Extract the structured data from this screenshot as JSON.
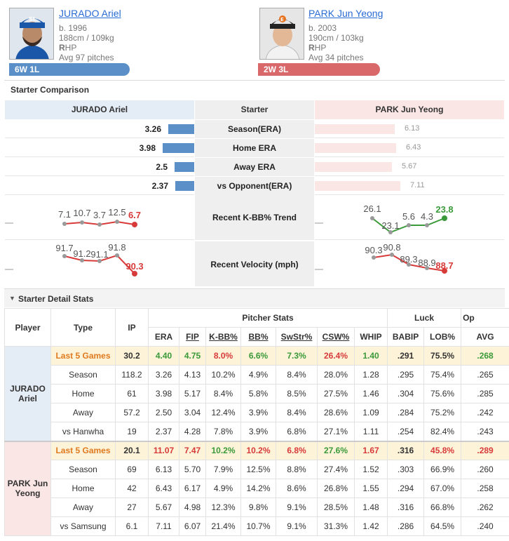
{
  "header": {
    "left": {
      "name": "JURADO Ariel",
      "born": "b. 1996",
      "size": "188cm / 109kg",
      "hand_bold": "R",
      "hand_rest": "HP",
      "avg": "Avg 97 pitches",
      "record": "6W 1L",
      "logo": "SL"
    },
    "right": {
      "name": "PARK Jun Yeong",
      "born": "b. 2003",
      "size": "190cm / 103kg",
      "hand_bold": "R",
      "hand_rest": "HP",
      "avg": "Avg 34 pitches",
      "record": "2W 3L",
      "logo": "E"
    }
  },
  "comparison": {
    "title": "Starter Comparison",
    "col_left": "JURADO Ariel",
    "col_mid": "Starter",
    "col_right": "PARK Jun Yeong",
    "rows": [
      {
        "label": "Season(ERA)",
        "left": "3.26",
        "right": "6.13",
        "left_v": 3.26,
        "right_v": 6.13
      },
      {
        "label": "Home ERA",
        "left": "3.98",
        "right": "6.43",
        "left_v": 3.98,
        "right_v": 6.43
      },
      {
        "label": "Away ERA",
        "left": "2.5",
        "right": "5.67",
        "left_v": 2.5,
        "right_v": 5.67
      },
      {
        "label": "vs Opponent(ERA)",
        "left": "2.37",
        "right": "7.11",
        "left_v": 2.37,
        "right_v": 7.11
      }
    ],
    "kbb_label": "Recent K-BB% Trend",
    "kbb_left": [
      "7.1",
      "10.7",
      "3.7",
      "12.5",
      "6.7"
    ],
    "kbb_right": [
      "26.1",
      "23.1",
      "5.6",
      "4.3",
      "23.8"
    ],
    "velo_label": "Recent Velocity (mph)",
    "velo_left": [
      "91.7",
      "91.2",
      "91.1",
      "91.8",
      "90.3"
    ],
    "velo_right": [
      "90.3",
      "90.8",
      "89.3",
      "88.9",
      "88.7"
    ],
    "colors": {
      "left": "#5b8fc7",
      "right": "#d9686b",
      "left_bg": "#e4ecf6",
      "right_bg": "#fbe6e6"
    }
  },
  "details": {
    "title": "Starter Detail Stats",
    "h_player": "Player",
    "h_type": "Type",
    "h_ip": "IP",
    "h_group1": "Pitcher Stats",
    "h_group2": "Luck",
    "h_group3": "Op",
    "cols": [
      "ERA",
      "FIP",
      "K-BB%",
      "BB%",
      "SwStr%",
      "CSW%",
      "WHIP",
      "BABIP",
      "LOB%",
      "AVG"
    ],
    "players": [
      {
        "name": "JURADO Ariel",
        "rows": [
          {
            "type": "Last 5 Games",
            "ip": "30.2",
            "v": [
              "4.40",
              "4.75",
              "8.0%",
              "6.6%",
              "7.3%",
              "26.4%",
              "1.40",
              ".291",
              "75.5%",
              ".268"
            ]
          },
          {
            "type": "Season",
            "ip": "118.2",
            "v": [
              "3.26",
              "4.13",
              "10.2%",
              "4.9%",
              "8.4%",
              "28.0%",
              "1.28",
              ".295",
              "75.4%",
              ".265"
            ]
          },
          {
            "type": "Home",
            "ip": "61",
            "v": [
              "3.98",
              "5.17",
              "8.4%",
              "5.8%",
              "8.5%",
              "27.5%",
              "1.46",
              ".304",
              "75.6%",
              ".285"
            ]
          },
          {
            "type": "Away",
            "ip": "57.2",
            "v": [
              "2.50",
              "3.04",
              "12.4%",
              "3.9%",
              "8.4%",
              "28.6%",
              "1.09",
              ".284",
              "75.2%",
              ".242"
            ]
          },
          {
            "type": "vs Hanwha",
            "ip": "19",
            "v": [
              "2.37",
              "4.28",
              "7.8%",
              "3.9%",
              "6.8%",
              "27.1%",
              "1.11",
              ".254",
              "82.4%",
              ".243"
            ]
          }
        ]
      },
      {
        "name": "PARK Jun Yeong",
        "rows": [
          {
            "type": "Last 5 Games",
            "ip": "20.1",
            "v": [
              "11.07",
              "7.47",
              "10.2%",
              "10.2%",
              "6.8%",
              "27.6%",
              "1.67",
              ".316",
              "45.8%",
              ".289"
            ]
          },
          {
            "type": "Season",
            "ip": "69",
            "v": [
              "6.13",
              "5.70",
              "7.9%",
              "12.5%",
              "8.8%",
              "27.4%",
              "1.52",
              ".303",
              "66.9%",
              ".260"
            ]
          },
          {
            "type": "Home",
            "ip": "42",
            "v": [
              "6.43",
              "6.17",
              "4.9%",
              "14.2%",
              "8.6%",
              "26.8%",
              "1.55",
              ".294",
              "67.0%",
              ".258"
            ]
          },
          {
            "type": "Away",
            "ip": "27",
            "v": [
              "5.67",
              "4.98",
              "12.3%",
              "9.8%",
              "9.1%",
              "28.5%",
              "1.48",
              ".316",
              "66.8%",
              ".262"
            ]
          },
          {
            "type": "vs Samsung",
            "ip": "6.1",
            "v": [
              "7.11",
              "6.07",
              "21.4%",
              "10.7%",
              "9.1%",
              "31.3%",
              "1.42",
              ".286",
              "64.5%",
              ".240"
            ]
          }
        ]
      }
    ]
  }
}
